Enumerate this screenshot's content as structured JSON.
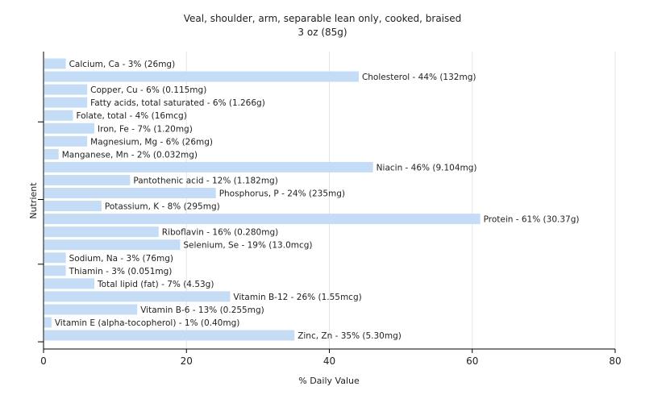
{
  "chart_data": {
    "type": "bar",
    "orientation": "horizontal",
    "title": "Veal, shoulder, arm, separable lean only, cooked, braised",
    "subtitle": "3 oz (85g)",
    "xlabel": "% Daily Value",
    "ylabel": "Nutrient",
    "xlim": [
      0,
      80
    ],
    "xticks": [
      0,
      20,
      40,
      60,
      80
    ],
    "grid": true,
    "bar_color": "#c5dcf7",
    "categories": [
      "Calcium, Ca",
      "Cholesterol",
      "Copper, Cu",
      "Fatty acids, total saturated",
      "Folate, total",
      "Iron, Fe",
      "Magnesium, Mg",
      "Manganese, Mn",
      "Niacin",
      "Pantothenic acid",
      "Phosphorus, P",
      "Potassium, K",
      "Protein",
      "Riboflavin",
      "Selenium, Se",
      "Sodium, Na",
      "Thiamin",
      "Total lipid (fat)",
      "Vitamin B-12",
      "Vitamin B-6",
      "Vitamin E (alpha-tocopherol)",
      "Zinc, Zn"
    ],
    "values": [
      3,
      44,
      6,
      6,
      4,
      7,
      6,
      2,
      46,
      12,
      24,
      8,
      61,
      16,
      19,
      3,
      3,
      7,
      26,
      13,
      1,
      35
    ],
    "labels": [
      "Calcium, Ca - 3% (26mg)",
      "Cholesterol - 44% (132mg)",
      "Copper, Cu - 6% (0.115mg)",
      "Fatty acids, total saturated - 6% (1.266g)",
      "Folate, total - 4% (16mcg)",
      "Iron, Fe - 7% (1.20mg)",
      "Magnesium, Mg - 6% (26mg)",
      "Manganese, Mn - 2% (0.032mg)",
      "Niacin - 46% (9.104mg)",
      "Pantothenic acid - 12% (1.182mg)",
      "Phosphorus, P - 24% (235mg)",
      "Potassium, K - 8% (295mg)",
      "Protein - 61% (30.37g)",
      "Riboflavin - 16% (0.280mg)",
      "Selenium, Se - 19% (13.0mcg)",
      "Sodium, Na - 3% (76mg)",
      "Thiamin - 3% (0.051mg)",
      "Total lipid (fat) - 7% (4.53g)",
      "Vitamin B-12 - 26% (1.55mcg)",
      "Vitamin B-6 - 13% (0.255mg)",
      "Vitamin E (alpha-tocopherol) - 1% (0.40mg)",
      "Zinc, Zn - 35% (5.30mg)"
    ]
  }
}
